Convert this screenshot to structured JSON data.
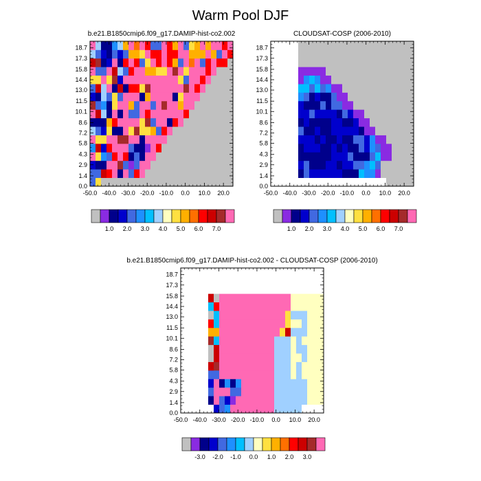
{
  "page_title": "Warm Pool DJF",
  "colors": {
    "background_gray": "#c0c0c0",
    "levels_palette": [
      "#c0c0c0",
      "#8a2be2",
      "#00008b",
      "#0000cd",
      "#4169e1",
      "#1e90ff",
      "#00bfff",
      "#a0d0ff",
      "#ffffc0",
      "#ffe040",
      "#ffb000",
      "#ff7000",
      "#ff0000",
      "#cc0000",
      "#a52a2a",
      "#ff69b4"
    ],
    "diff_palette": [
      "#c0c0c0",
      "#8a2be2",
      "#00008b",
      "#0000cd",
      "#4169e1",
      "#1e90ff",
      "#00bfff",
      "#a0d0ff",
      "#ffffc0",
      "#ffe040",
      "#ffb000",
      "#ff7000",
      "#ff0000",
      "#cc0000",
      "#a52a2a",
      "#ff69b4"
    ]
  },
  "chart_data": [
    {
      "type": "heatmap",
      "title": "b.e21.B1850cmip6.f09_g17.DAMIP-hist-co2.002",
      "x_ticks": [
        "-50.0",
        "-40.0",
        "-30.0",
        "-20.0",
        "-10.0",
        "0.0",
        "10.0",
        "20.0"
      ],
      "y_ticks": [
        "0.0",
        "1.4",
        "2.9",
        "4.3",
        "5.8",
        "7.2",
        "8.6",
        "10.1",
        "11.5",
        "13.0",
        "14.4",
        "15.8",
        "17.3",
        "18.7"
      ],
      "xlim": [
        -50,
        25
      ],
      "ylim": [
        0,
        19.6
      ],
      "colorbar_labels": [
        "1.0",
        "2.0",
        "3.0",
        "4.0",
        "5.0",
        "6.0",
        "7.0"
      ],
      "colorbar_levels": [
        "gray",
        "purple",
        "navy",
        "mediumblue",
        "royalblue",
        "dodgerblue",
        "deepskyblue",
        "lightblue",
        "lightyellow",
        "yellow",
        "orange",
        "darkorange",
        "red",
        "darkred",
        "brown",
        "pink"
      ]
    },
    {
      "type": "heatmap",
      "title": "CLOUDSAT-COSP (2006-2010)",
      "x_ticks": [
        "-50.0",
        "-40.0",
        "-30.0",
        "-20.0",
        "-10.0",
        "0.0",
        "10.0",
        "20.0"
      ],
      "y_ticks": [
        "0.0",
        "1.4",
        "2.9",
        "4.3",
        "5.8",
        "7.2",
        "8.6",
        "10.1",
        "11.5",
        "13.0",
        "14.4",
        "15.8",
        "17.3",
        "18.7"
      ],
      "xlim": [
        -50,
        25
      ],
      "ylim": [
        0,
        19.6
      ],
      "colorbar_labels": [
        "1.0",
        "2.0",
        "3.0",
        "4.0",
        "5.0",
        "6.0",
        "7.0"
      ]
    },
    {
      "type": "heatmap",
      "title": "b.e21.B1850cmip6.f09_g17.DAMIP-hist-co2.002 - CLOUDSAT-COSP (2006-2010)",
      "x_ticks": [
        "-50.0",
        "-40.0",
        "-30.0",
        "-20.0",
        "-10.0",
        "0.0",
        "10.0",
        "20.0"
      ],
      "y_ticks": [
        "0.0",
        "1.4",
        "2.9",
        "4.3",
        "5.8",
        "7.2",
        "8.6",
        "10.1",
        "11.5",
        "13.0",
        "14.4",
        "15.8",
        "17.3",
        "18.7"
      ],
      "xlim": [
        -50,
        25
      ],
      "ylim": [
        0,
        19.6
      ],
      "colorbar_labels": [
        "-3.0",
        "-2.0",
        "-1.0",
        "0.0",
        "1.0",
        "2.0",
        "3.0"
      ]
    }
  ]
}
